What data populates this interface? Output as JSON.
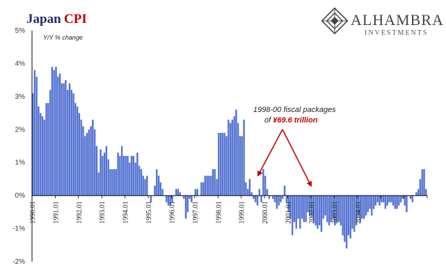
{
  "title": {
    "part1": "Japan",
    "part2": "CPI"
  },
  "logo": {
    "name": "ALHAMBRA",
    "sub": "INVESTMENTS"
  },
  "colors": {
    "bar": "#4f6fd0",
    "bar_edge": "#7f93dd",
    "arrow": "#c00000",
    "title_blue": "#1f2f6b",
    "accent_red": "#c00000"
  },
  "annotation": {
    "line1": "1998-00 fiscal packages",
    "line2_prefix": "of ",
    "line2_highlight": "¥69.6 trillion"
  },
  "chart_data": {
    "type": "bar",
    "ylabel": "Y/Y % change",
    "ylim": [
      -2,
      5
    ],
    "yticks": [
      "-2%",
      "-1%",
      "0%",
      "1%",
      "2%",
      "3%",
      "4%",
      "5%"
    ],
    "xticks": [
      "1990.01",
      "1991.01",
      "1992.01",
      "1993.01",
      "1994.01",
      "1995.01",
      "1996.01",
      "1997.01",
      "1998.01",
      "1999.01",
      "2000.01",
      "2001.01",
      "2002.01",
      "2003.01",
      "2004.01"
    ],
    "start_label": "1990.01",
    "values": [
      3.1,
      3.8,
      3.6,
      2.7,
      2.5,
      2.4,
      2.3,
      2.8,
      2.8,
      3.2,
      3.9,
      3.8,
      3.9,
      3.6,
      3.7,
      3.4,
      3.4,
      3.5,
      3.2,
      3.4,
      3.2,
      3.1,
      2.8,
      2.7,
      2.5,
      2.3,
      2.1,
      1.8,
      1.9,
      2.0,
      2.1,
      2.3,
      2.0,
      1.5,
      0.7,
      1.4,
      1.2,
      1.3,
      1.5,
      1.1,
      0.8,
      0.8,
      0.8,
      0.8,
      1.3,
      1.2,
      1.5,
      1.2,
      1.2,
      1.2,
      1.0,
      1.2,
      1.2,
      1.0,
      1.3,
      0.9,
      0.8,
      0.6,
      0.5,
      0.6,
      0.0,
      -0.2,
      0.0,
      0.3,
      0.8,
      0.6,
      0.4,
      0.2,
      0.0,
      -0.2,
      -0.3,
      -0.3,
      -0.2,
      0.0,
      0.2,
      0.2,
      0.1,
      0.0,
      -0.1,
      -0.7,
      -0.5,
      -0.1,
      -0.2,
      0.0,
      0.2,
      0.2,
      0.0,
      0.4,
      0.4,
      0.6,
      0.6,
      0.6,
      0.6,
      0.8,
      0.8,
      0.5,
      1.9,
      1.9,
      1.9,
      1.9,
      1.8,
      2.3,
      2.2,
      2.3,
      2.4,
      2.6,
      2.2,
      1.8,
      1.8,
      2.3,
      0.4,
      0.2,
      0.5,
      0.1,
      -0.1,
      -0.2,
      -0.3,
      0.2,
      -0.2,
      0.8,
      0.6,
      0.2,
      -0.1,
      0.0,
      -0.1,
      -0.2,
      -0.4,
      -0.3,
      -0.2,
      -0.1,
      0.3,
      -0.2,
      -0.5,
      -0.7,
      -1.2,
      -0.8,
      -1.0,
      -0.7,
      -1.0,
      -0.7,
      -0.8,
      -0.8,
      -0.5,
      -0.6,
      -0.6,
      -0.8,
      -0.9,
      -1.0,
      -0.9,
      -1.1,
      -0.7,
      -0.6,
      -0.8,
      -0.9,
      -0.8,
      -0.7,
      -0.9,
      -0.8,
      -0.8,
      -0.9,
      -1.2,
      -1.4,
      -1.6,
      -1.2,
      -1.3,
      -1.0,
      -1.1,
      -0.9,
      -0.6,
      -0.8,
      -0.7,
      -0.7,
      -0.6,
      -0.5,
      -0.4,
      -0.6,
      -0.4,
      -0.3,
      -0.2,
      -0.3,
      -0.2,
      -0.2,
      -0.4,
      -0.3,
      -0.2,
      -0.2,
      -0.3,
      -0.4,
      -0.4,
      -0.3,
      -0.2,
      -0.1,
      -0.3,
      -0.5,
      0.0,
      -0.1,
      -0.2,
      0.0,
      0.1,
      0.2,
      0.5,
      0.8,
      0.8,
      0.2
    ]
  }
}
